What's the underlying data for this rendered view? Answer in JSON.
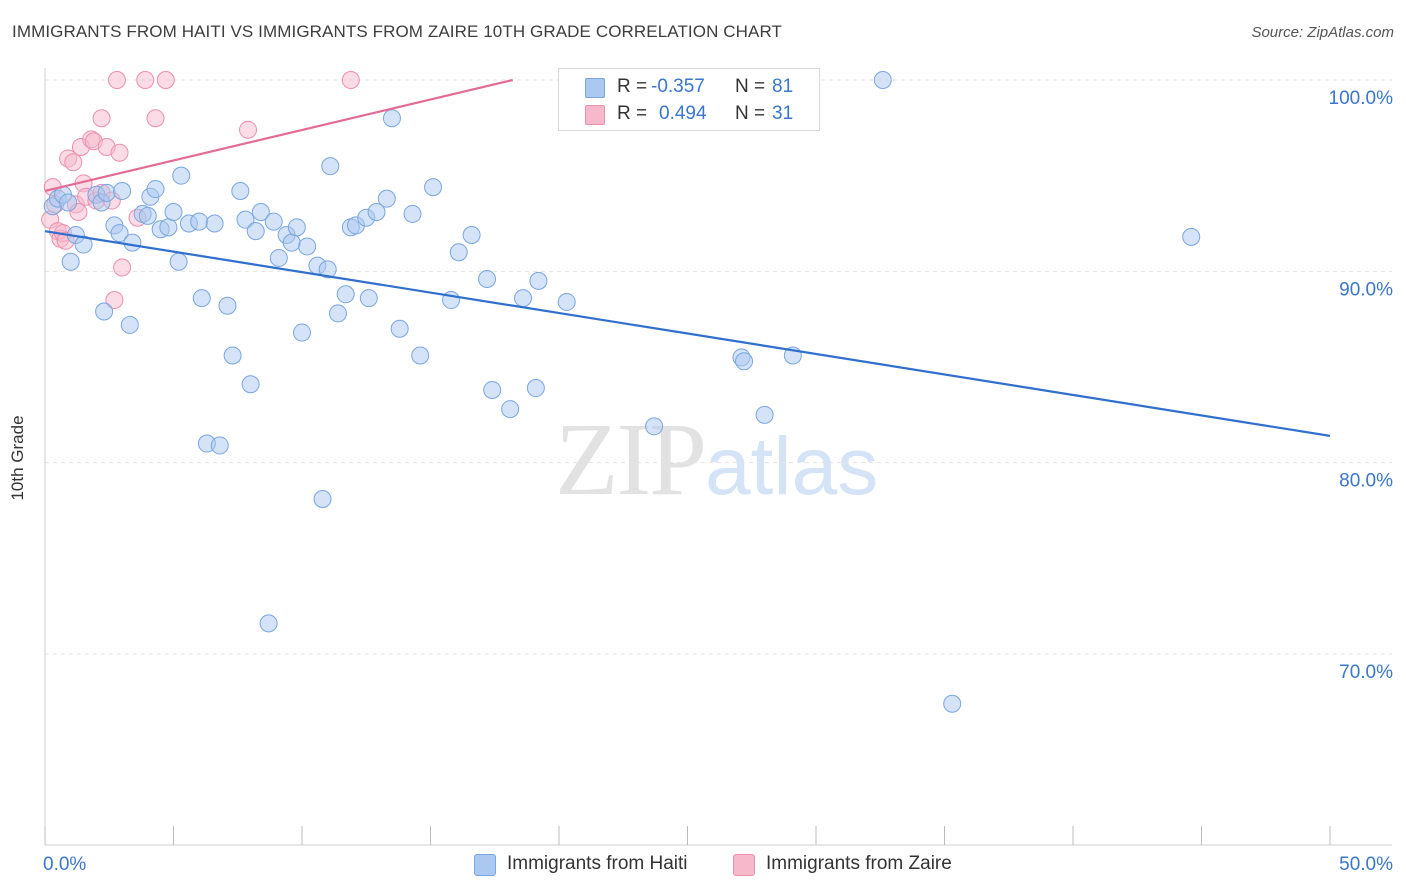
{
  "header": {
    "title": "IMMIGRANTS FROM HAITI VS IMMIGRANTS FROM ZAIRE 10TH GRADE CORRELATION CHART",
    "source": "Source: ZipAtlas.com"
  },
  "watermark": {
    "zip": "ZIP",
    "atlas": "atlas"
  },
  "legend": {
    "rows": [
      {
        "r_label": "R =",
        "r_value": "-0.357",
        "n_label": "N =",
        "n_value": "81",
        "color": "#aac8f0"
      },
      {
        "r_label": "R =",
        "r_value": "0.494",
        "n_label": "N =",
        "n_value": "31",
        "color": "#f7b8cb"
      }
    ]
  },
  "bottom_legend": {
    "haiti": "Immigrants from Haiti",
    "zaire": "Immigrants from Zaire"
  },
  "colors": {
    "haiti_fill": "#aac8f0",
    "haiti_stroke": "#7aa6e0",
    "haiti_line": "#2f6fce",
    "zaire_fill": "#f7b8cb",
    "zaire_stroke": "#ec8fae",
    "zaire_line": "#e46b94",
    "axis_label": "#3a76cc"
  },
  "chart_data": {
    "type": "scatter",
    "title": "IMMIGRANTS FROM HAITI VS IMMIGRANTS FROM ZAIRE 10TH GRADE CORRELATION CHART",
    "xlabel": "",
    "ylabel": "10th Grade",
    "xlim": [
      0,
      50
    ],
    "ylim": [
      61,
      101.5
    ],
    "x_tick_labels": [
      {
        "value": 0,
        "label": "0.0%"
      },
      {
        "value": 50,
        "label": "50.0%"
      }
    ],
    "y_tick_labels": [
      {
        "value": 100,
        "label": "100.0%"
      },
      {
        "value": 90,
        "label": "90.0%"
      },
      {
        "value": 80,
        "label": "80.0%"
      },
      {
        "value": 70,
        "label": "70.0%"
      }
    ],
    "grid": true,
    "series": [
      {
        "name": "Immigrants from Haiti",
        "color": "#aac8f0",
        "trend": {
          "x": [
            0,
            50
          ],
          "y": [
            92.1,
            81.4
          ]
        },
        "points": [
          [
            0.3,
            93.4
          ],
          [
            0.5,
            93.8
          ],
          [
            0.7,
            94.0
          ],
          [
            0.9,
            93.6
          ],
          [
            1.0,
            90.5
          ],
          [
            1.2,
            91.9
          ],
          [
            1.5,
            91.4
          ],
          [
            2.0,
            94.0
          ],
          [
            2.2,
            93.6
          ],
          [
            2.3,
            87.9
          ],
          [
            2.4,
            94.1
          ],
          [
            2.7,
            92.4
          ],
          [
            2.9,
            92.0
          ],
          [
            3.0,
            94.2
          ],
          [
            3.3,
            87.2
          ],
          [
            3.4,
            91.5
          ],
          [
            3.8,
            93.0
          ],
          [
            4.0,
            92.9
          ],
          [
            4.1,
            93.9
          ],
          [
            4.3,
            94.3
          ],
          [
            4.5,
            92.2
          ],
          [
            4.8,
            92.3
          ],
          [
            5.0,
            93.1
          ],
          [
            5.2,
            90.5
          ],
          [
            5.3,
            95.0
          ],
          [
            5.6,
            92.5
          ],
          [
            6.0,
            92.6
          ],
          [
            6.1,
            88.6
          ],
          [
            6.3,
            81.0
          ],
          [
            6.6,
            92.5
          ],
          [
            6.8,
            80.9
          ],
          [
            7.1,
            88.2
          ],
          [
            7.3,
            85.6
          ],
          [
            7.6,
            94.2
          ],
          [
            7.8,
            92.7
          ],
          [
            8.0,
            84.1
          ],
          [
            8.2,
            92.1
          ],
          [
            8.4,
            93.1
          ],
          [
            8.7,
            71.6
          ],
          [
            8.9,
            92.6
          ],
          [
            9.1,
            90.7
          ],
          [
            9.4,
            91.9
          ],
          [
            9.6,
            91.5
          ],
          [
            9.8,
            92.3
          ],
          [
            10.0,
            86.8
          ],
          [
            10.2,
            91.3
          ],
          [
            10.6,
            90.3
          ],
          [
            10.8,
            78.1
          ],
          [
            11.0,
            90.1
          ],
          [
            11.1,
            95.5
          ],
          [
            11.4,
            87.8
          ],
          [
            11.7,
            88.8
          ],
          [
            11.9,
            92.3
          ],
          [
            12.1,
            92.4
          ],
          [
            12.5,
            92.8
          ],
          [
            12.6,
            88.6
          ],
          [
            12.9,
            93.1
          ],
          [
            13.3,
            93.8
          ],
          [
            13.5,
            98.0
          ],
          [
            13.8,
            87.0
          ],
          [
            14.3,
            93.0
          ],
          [
            14.6,
            85.6
          ],
          [
            15.1,
            94.4
          ],
          [
            15.8,
            88.5
          ],
          [
            16.1,
            91.0
          ],
          [
            16.6,
            91.9
          ],
          [
            17.2,
            89.6
          ],
          [
            17.4,
            83.8
          ],
          [
            18.1,
            82.8
          ],
          [
            18.6,
            88.6
          ],
          [
            19.1,
            83.9
          ],
          [
            19.2,
            89.5
          ],
          [
            20.3,
            88.4
          ],
          [
            23.7,
            81.9
          ],
          [
            27.1,
            85.5
          ],
          [
            27.2,
            85.3
          ],
          [
            28.0,
            82.5
          ],
          [
            29.1,
            85.6
          ],
          [
            32.6,
            100.0
          ],
          [
            35.3,
            67.4
          ],
          [
            44.6,
            91.8
          ]
        ]
      },
      {
        "name": "Immigrants from Zaire",
        "color": "#f7b8cb",
        "trend": {
          "x": [
            0,
            18.2
          ],
          "y": [
            94.2,
            100.0
          ]
        },
        "points": [
          [
            0.2,
            92.7
          ],
          [
            0.3,
            94.4
          ],
          [
            0.4,
            93.5
          ],
          [
            0.5,
            92.1
          ],
          [
            0.6,
            91.7
          ],
          [
            0.7,
            92.0
          ],
          [
            0.8,
            91.6
          ],
          [
            0.9,
            95.9
          ],
          [
            1.1,
            95.7
          ],
          [
            1.2,
            93.5
          ],
          [
            1.3,
            93.1
          ],
          [
            1.4,
            96.5
          ],
          [
            1.5,
            94.6
          ],
          [
            1.6,
            93.9
          ],
          [
            1.8,
            96.9
          ],
          [
            1.9,
            96.8
          ],
          [
            2.0,
            93.7
          ],
          [
            2.2,
            94.1
          ],
          [
            2.2,
            98.0
          ],
          [
            2.4,
            96.5
          ],
          [
            2.6,
            93.7
          ],
          [
            2.7,
            88.5
          ],
          [
            2.9,
            96.2
          ],
          [
            3.0,
            90.2
          ],
          [
            2.8,
            100.0
          ],
          [
            3.6,
            92.8
          ],
          [
            3.9,
            100.0
          ],
          [
            4.3,
            98.0
          ],
          [
            4.7,
            100.0
          ],
          [
            7.9,
            97.4
          ],
          [
            11.9,
            100.0
          ]
        ]
      }
    ]
  }
}
